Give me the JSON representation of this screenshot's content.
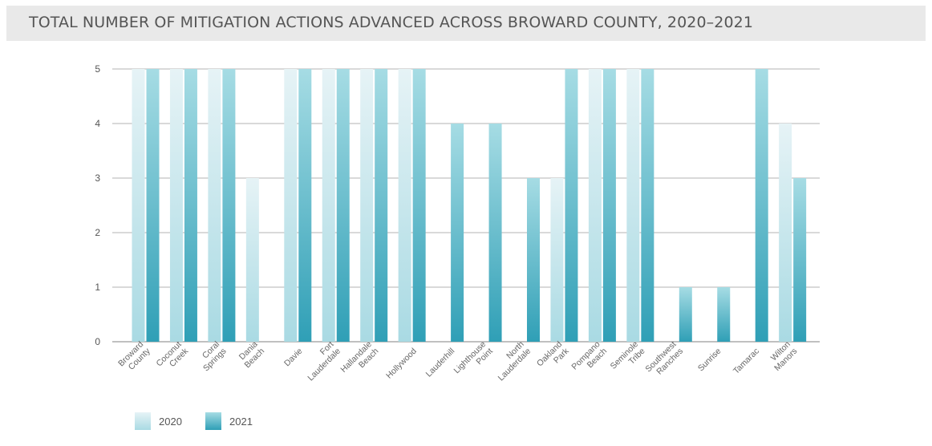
{
  "title": "TOTAL NUMBER OF MITIGATION ACTIONS ADVANCED ACROSS BROWARD COUNTY, 2020–2021",
  "colors": {
    "c2020_light": "#e6f3f6",
    "c2020_dark": "#a9dae3",
    "c2021_light": "#a6dce4",
    "c2021_dark": "#2f9fb6",
    "grid": "#9a9a9a",
    "title_bg": "#e9e9e9"
  },
  "chart_data": {
    "type": "bar",
    "title": "TOTAL NUMBER OF MITIGATION ACTIONS ADVANCED ACROSS BROWARD COUNTY, 2020–2021",
    "xlabel": "",
    "ylabel": "",
    "ylim": [
      0,
      5
    ],
    "yticks": [
      0,
      1,
      2,
      3,
      4,
      5
    ],
    "grid": true,
    "legend_position": "bottom-left",
    "categories": [
      [
        "Broward",
        "County"
      ],
      [
        "Coconut",
        "Creek"
      ],
      [
        "Coral",
        "Springs"
      ],
      [
        "Dania",
        "Beach"
      ],
      [
        "Davie"
      ],
      [
        "Fort",
        "Lauderdale"
      ],
      [
        "Hallandale",
        "Beach"
      ],
      [
        "Hollywood"
      ],
      [
        "Lauderhill"
      ],
      [
        "Lighthouse",
        "Point"
      ],
      [
        "North",
        "Lauderdale"
      ],
      [
        "Oakland",
        "Park"
      ],
      [
        "Pompano",
        "Beach"
      ],
      [
        "Seminole",
        "Tribe"
      ],
      [
        "Southwest",
        "Ranches"
      ],
      [
        "Sunrise"
      ],
      [
        "Tamarac"
      ],
      [
        "Wilton",
        "Manors"
      ]
    ],
    "series": [
      {
        "name": "2020",
        "values": [
          5,
          5,
          5,
          3,
          5,
          5,
          5,
          5,
          0,
          0,
          0,
          3,
          5,
          5,
          0,
          0,
          0,
          4
        ]
      },
      {
        "name": "2021",
        "values": [
          5,
          5,
          5,
          0,
          5,
          5,
          5,
          5,
          4,
          4,
          3,
          5,
          5,
          5,
          1,
          1,
          5,
          3
        ]
      }
    ]
  }
}
